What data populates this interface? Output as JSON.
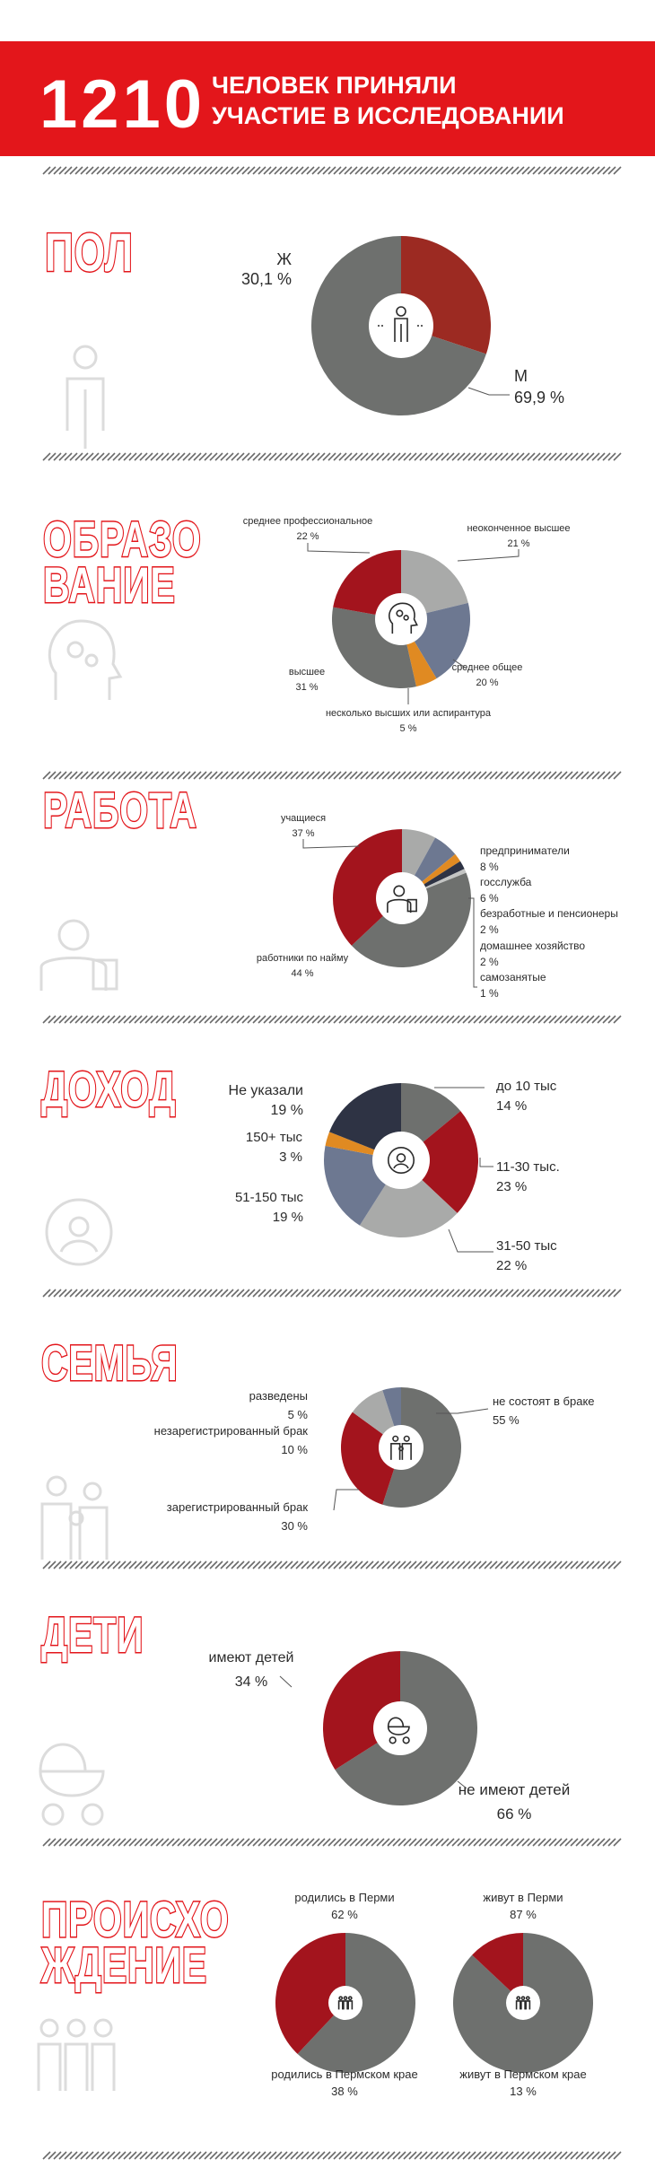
{
  "header": {
    "number": "1210",
    "line1": "ЧЕЛОВЕК ПРИНЯЛИ",
    "line2": "УЧАСТИЕ В ИССЛЕДОВАНИИ"
  },
  "colors": {
    "red": "#e3161b",
    "dark_red": "#a3141d",
    "gray": "#6e706e",
    "light_gray": "#a9aaa9",
    "slate": "#6d7891",
    "orange": "#e08a22",
    "navy": "#2e3344",
    "brick": "#9c2a22",
    "stripe": "#6a6a6a",
    "ghost": "#dcdcdc"
  },
  "chart_data": [
    {
      "id": "pol",
      "type": "pie",
      "title": "ПОЛ",
      "icon": "person-icon",
      "series": [
        {
          "name": "Ж",
          "value": 30.1,
          "label": "30,1 %",
          "color": "#9c2a22"
        },
        {
          "name": "М",
          "value": 69.9,
          "label": "69,9 %",
          "color": "#6e706e"
        }
      ]
    },
    {
      "id": "obrazovanie",
      "type": "pie",
      "title": [
        "ОБРАЗО",
        "ВАНИЕ"
      ],
      "icon": "brain-head-icon",
      "series": [
        {
          "name": "неоконченное высшее",
          "value": 21,
          "label": "21 %",
          "color": "#a9aaa9"
        },
        {
          "name": "среднее общее",
          "value": 20,
          "label": "20 %",
          "color": "#6d7891"
        },
        {
          "name": "несколько высших или аспирантура",
          "value": 5,
          "label": "5 %",
          "color": "#e08a22"
        },
        {
          "name": "высшее",
          "value": 31,
          "label": "31 %",
          "color": "#6e706e"
        },
        {
          "name": "среднее профессиональное",
          "value": 22,
          "label": "22 %",
          "color": "#a3141d"
        }
      ]
    },
    {
      "id": "rabota",
      "type": "pie",
      "title": "РАБОТА",
      "icon": "worker-icon",
      "series": [
        {
          "name": "предприниматели",
          "value": 8,
          "label": "8 %",
          "color": "#a9aaa9"
        },
        {
          "name": "госслужба",
          "value": 6,
          "label": "6 %",
          "color": "#6d7891"
        },
        {
          "name": "безработные и пенсионеры",
          "value": 2,
          "label": "2 %",
          "color": "#e08a22"
        },
        {
          "name": "домашнее хозяйство",
          "value": 2,
          "label": "2 %",
          "color": "#2e3344"
        },
        {
          "name": "самозанятые",
          "value": 1,
          "label": "1 %",
          "color": "#c3c4c3"
        },
        {
          "name": "работники по найму",
          "value": 44,
          "label": "44 %",
          "color": "#6e706e"
        },
        {
          "name": "учащиеся",
          "value": 37,
          "label": "37 %",
          "color": "#a3141d"
        }
      ]
    },
    {
      "id": "dohod",
      "type": "pie",
      "title": "ДОХОД",
      "icon": "wallet-icon",
      "series": [
        {
          "name": "до 10 тыс",
          "value": 14,
          "label": "14 %",
          "color": "#6e706e"
        },
        {
          "name": "11-30 тыс.",
          "value": 23,
          "label": "23 %",
          "color": "#a3141d"
        },
        {
          "name": "31-50 тыс",
          "value": 22,
          "label": "22 %",
          "color": "#a9aaa9"
        },
        {
          "name": "51-150 тыс",
          "value": 19,
          "label": "19 %",
          "color": "#6d7891"
        },
        {
          "name": "150+ тыс",
          "value": 3,
          "label": "3 %",
          "color": "#e08a22"
        },
        {
          "name": "Не указали",
          "value": 19,
          "label": "19 %",
          "color": "#2e3344"
        }
      ]
    },
    {
      "id": "semya",
      "type": "pie",
      "title": "СЕМЬЯ",
      "icon": "family-icon",
      "series": [
        {
          "name": "не состоят в браке",
          "value": 55,
          "label": "55 %",
          "color": "#6e706e"
        },
        {
          "name": "зарегистрированный брак",
          "value": 30,
          "label": "30 %",
          "color": "#a3141d"
        },
        {
          "name": "незарегистрированный брак",
          "value": 10,
          "label": "10 %",
          "color": "#a9aaa9"
        },
        {
          "name": "разведены",
          "value": 5,
          "label": "5 %",
          "color": "#6d7891"
        }
      ]
    },
    {
      "id": "deti",
      "type": "pie",
      "title": "ДЕТИ",
      "icon": "stroller-icon",
      "series": [
        {
          "name": "не имеют детей",
          "value": 66,
          "label": "66 %",
          "color": "#6e706e"
        },
        {
          "name": "имеют детей",
          "value": 34,
          "label": "34 %",
          "color": "#a3141d"
        }
      ]
    },
    {
      "id": "proishozhdenie-1",
      "type": "pie",
      "title": [
        "ПРОИСХО",
        "ЖДЕНИЕ"
      ],
      "icon": "group-icon",
      "series": [
        {
          "name": "родились в Перми",
          "value": 62,
          "label": "62 %",
          "color": "#6e706e"
        },
        {
          "name": "родились в Пермском крае",
          "value": 38,
          "label": "38 %",
          "color": "#a3141d"
        }
      ]
    },
    {
      "id": "proishozhdenie-2",
      "type": "pie",
      "title": "",
      "icon": "group-icon",
      "series": [
        {
          "name": "живут в Перми",
          "value": 87,
          "label": "87 %",
          "color": "#6e706e"
        },
        {
          "name": "живут в Пермском крае",
          "value": 13,
          "label": "13 %",
          "color": "#a3141d"
        }
      ]
    }
  ]
}
